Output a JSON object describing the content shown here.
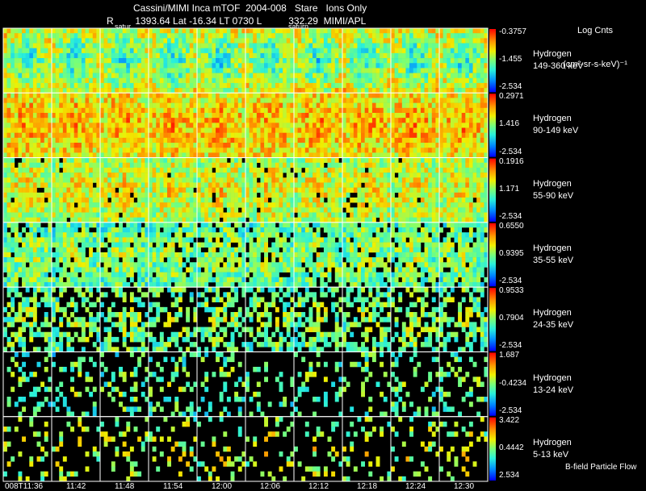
{
  "header": {
    "title": "Cassini/MIMI Inca mTOF  2004-008   Stare   Ions Only",
    "orbit": "R        1393.64 Lat -16.34 LT 0730 L          332.29  MIMI/APL",
    "units": "Log Cnts",
    "units_sub": "(cm²-sr-s-keV)⁻¹"
  },
  "satur_labels": [
    "satur",
    "saturn"
  ],
  "footer": "B-field Particle Flow",
  "chart_data": {
    "type": "heatmap",
    "title": "Cassini/MIMI Inca mTOF  2004-008   Stare   Ions Only",
    "x_tick_labels": [
      "008T11:36",
      "11:42",
      "11:48",
      "11:54",
      "12:00",
      "12:06",
      "12:12",
      "12:18",
      "12:24",
      "12:30"
    ],
    "columns_per_row": 10,
    "rows": [
      {
        "species": "Hydrogen",
        "energy": "149-360 keV",
        "cb_max": "-0.3757",
        "cb_mid": "-1.455",
        "cb_min": "-2.534",
        "mean_level": 0.33,
        "sparsity": 0.0
      },
      {
        "species": "Hydrogen",
        "energy": "90-149 keV",
        "cb_max": "0.2971",
        "cb_mid": "1.416",
        "cb_min": "-2.534",
        "mean_level": 0.8,
        "sparsity": 0.0
      },
      {
        "species": "Hydrogen",
        "energy": "55-90 keV",
        "cb_max": "0.1916",
        "cb_mid": "1.171",
        "cb_min": "-2.534",
        "mean_level": 0.7,
        "sparsity": 0.03
      },
      {
        "species": "Hydrogen",
        "energy": "35-55 keV",
        "cb_max": "0.6550",
        "cb_mid": "0.9395",
        "cb_min": "-2.534",
        "mean_level": 0.58,
        "sparsity": 0.12
      },
      {
        "species": "Hydrogen",
        "energy": "24-35 keV",
        "cb_max": "0.9533",
        "cb_mid": "0.7904",
        "cb_min": "-2.534",
        "mean_level": 0.58,
        "sparsity": 0.45
      },
      {
        "species": "Hydrogen",
        "energy": "13-24 keV",
        "cb_max": "1.687",
        "cb_mid": "-0.4234",
        "cb_min": "-2.534",
        "mean_level": 0.55,
        "sparsity": 0.75
      },
      {
        "species": "Hydrogen",
        "energy": "5-13 keV",
        "cb_max": "3.422",
        "cb_mid": "0.4442",
        "cb_min": "2.534",
        "mean_level": 0.65,
        "sparsity": 0.82
      }
    ]
  }
}
